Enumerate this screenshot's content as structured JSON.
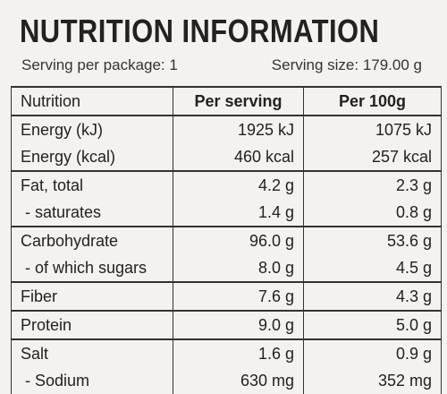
{
  "header": {
    "title": "NUTRITION INFORMATION",
    "servings_per_package": "Serving per package: 1",
    "serving_size": "Serving size: 179.00 g"
  },
  "table": {
    "columns": [
      "Nutrition",
      "Per serving",
      "Per 100g"
    ],
    "groups": [
      {
        "rows": [
          [
            "Energy (kJ)",
            "1925 kJ",
            "1075 kJ"
          ],
          [
            "Energy (kcal)",
            "460 kcal",
            "257 kcal"
          ]
        ]
      },
      {
        "rows": [
          [
            "Fat, total",
            "4.2 g",
            "2.3 g"
          ],
          [
            " - saturates",
            "1.4 g",
            "0.8 g"
          ]
        ]
      },
      {
        "rows": [
          [
            "Carbohydrate",
            "96.0 g",
            "53.6 g"
          ],
          [
            " - of which sugars",
            "8.0 g",
            "4.5 g"
          ]
        ]
      },
      {
        "rows": [
          [
            "Fiber",
            "7.6 g",
            "4.3 g"
          ]
        ]
      },
      {
        "rows": [
          [
            "Protein",
            "9.0 g",
            "5.0 g"
          ]
        ]
      },
      {
        "rows": [
          [
            "Salt",
            "1.6 g",
            "0.9 g"
          ],
          [
            " - Sodium",
            "630 mg",
            "352 mg"
          ]
        ]
      }
    ]
  }
}
